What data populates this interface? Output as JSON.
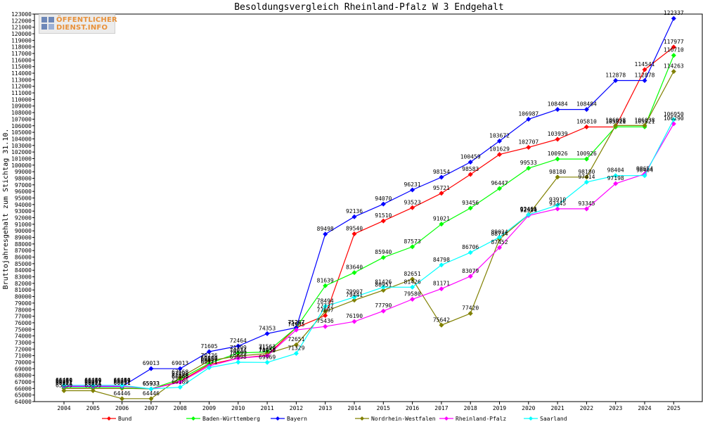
{
  "logo": {
    "line1": "ÖFFENTLICHER",
    "line2": "DIENST.INFO"
  },
  "chart_data": {
    "type": "line",
    "title": "Besoldungsvergleich Rheinland-Pfalz W 3 Endgehalt",
    "xlabel": "",
    "ylabel": "Bruttojahresgehalt zum Stichtag 31.10.",
    "ylim": [
      64000,
      123000
    ],
    "ytick_step": 1000,
    "grid": false,
    "legend_position": "bottom",
    "x": [
      "2004",
      "2005",
      "2006",
      "2007",
      "2008",
      "2009",
      "2010",
      "2011",
      "2012",
      "2013",
      "2014",
      "2015",
      "2016",
      "2017",
      "2018",
      "2019",
      "2020",
      "2021",
      "2022",
      "2023",
      "2024",
      "2025"
    ],
    "series": [
      {
        "name": "Bund",
        "color": "#ff0000",
        "values": [
          66021,
          66021,
          66021,
          65933,
          67068,
          69650,
          70599,
          71053,
          75267,
          77097,
          89540,
          91510,
          93523,
          95721,
          98583,
          101629,
          102707,
          103939,
          105810,
          105810,
          114541,
          117977
        ]
      },
      {
        "name": "Baden-Württemberg",
        "color": "#00ff00",
        "values": [
          66091,
          66091,
          66091,
          65933,
          67408,
          69800,
          71399,
          71563,
          75267,
          81639,
          83640,
          85940,
          87573,
          91021,
          93456,
          96447,
          99533,
          100926,
          100926,
          105821,
          105821,
          116710
        ]
      },
      {
        "name": "Bayern",
        "color": "#0000ff",
        "values": [
          66299,
          66299,
          66299,
          69013,
          69013,
          71605,
          72464,
          74353,
          75267,
          89498,
          92136,
          94070,
          96231,
          98154,
          100459,
          103672,
          106987,
          108484,
          108484,
          112878,
          112878,
          122337
        ]
      },
      {
        "name": "Nordrhein-Westfalen",
        "color": "#808000",
        "values": [
          65659,
          65659,
          64446,
          64446,
          67668,
          70236,
          70934,
          71329,
          72651,
          77737,
          79441,
          80951,
          82651,
          75642,
          77420,
          88734,
          92451,
          98180,
          98180,
          106038,
          106038,
          114263
        ]
      },
      {
        "name": "Rheinland-Pfalz",
        "color": "#ff00ff",
        "values": [
          66359,
          66359,
          66359,
          65933,
          66969,
          69427,
          70599,
          70959,
          74905,
          75436,
          76190,
          77790,
          79580,
          81171,
          83079,
          87452,
          92334,
          93345,
          93345,
          97198,
          98654,
          106290
        ]
      },
      {
        "name": "Saarland",
        "color": "#00ffff",
        "values": [
          66480,
          66480,
          66480,
          65933,
          66189,
          69171,
          69998,
          69969,
          71329,
          78494,
          79907,
          81426,
          81426,
          84798,
          86706,
          89024,
          92466,
          93910,
          97414,
          98404,
          98404,
          106950
        ]
      }
    ]
  }
}
